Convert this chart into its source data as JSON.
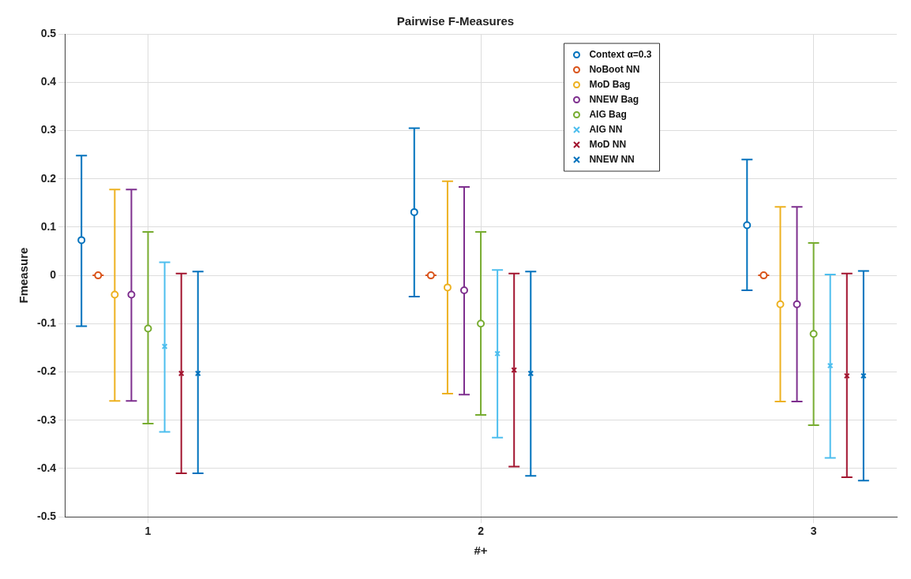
{
  "chart_data": {
    "type": "scatter",
    "title": "Pairwise F-Measures",
    "xlabel": "#+",
    "ylabel": "Fmeasure",
    "xlim": [
      0.75,
      3.25
    ],
    "xticks": [
      1,
      2,
      3
    ],
    "ylim": [
      -0.5,
      0.5
    ],
    "yticks": [
      -0.5,
      -0.4,
      -0.3,
      -0.2,
      -0.1,
      0,
      0.1,
      0.2,
      0.3,
      0.4,
      0.5
    ],
    "grid": true,
    "legend": "top right",
    "series": [
      {
        "name": "Context α=0.3",
        "color": "#0072bd",
        "marker": "circle",
        "x": [
          0.8,
          1.8,
          2.8
        ],
        "values": [
          0.073,
          0.131,
          0.104
        ],
        "errors": [
          [
            -0.105,
            0.248
          ],
          [
            -0.044,
            0.305
          ],
          [
            -0.031,
            0.24
          ]
        ]
      },
      {
        "name": "NoBoot NN",
        "color": "#d95319",
        "marker": "circle",
        "x": [
          0.85,
          1.85,
          2.85
        ],
        "values": [
          0,
          0,
          0
        ],
        "errors": [
          0,
          0,
          0
        ]
      },
      {
        "name": "MoD Bag",
        "color": "#edb120",
        "marker": "circle",
        "x": [
          0.9,
          1.9,
          2.9
        ],
        "values": [
          -0.04,
          -0.025,
          -0.06
        ],
        "errors": [
          [
            -0.26,
            0.178
          ],
          [
            -0.245,
            0.195
          ],
          [
            -0.261,
            0.142
          ]
        ]
      },
      {
        "name": "NNEW Bag",
        "color": "#7e2f8e",
        "marker": "circle",
        "x": [
          0.95,
          1.95,
          2.95
        ],
        "values": [
          -0.04,
          -0.031,
          -0.06
        ],
        "errors": [
          [
            -0.26,
            0.178
          ],
          [
            -0.247,
            0.183
          ],
          [
            -0.261,
            0.142
          ]
        ]
      },
      {
        "name": "AIG Bag",
        "color": "#77ac30",
        "marker": "circle",
        "x": [
          1,
          2,
          3
        ],
        "values": [
          -0.11,
          -0.1,
          -0.121
        ],
        "errors": [
          [
            -0.307,
            0.09
          ],
          [
            -0.289,
            0.09
          ],
          [
            -0.31,
            0.067
          ]
        ]
      },
      {
        "name": "AIG NN",
        "color": "#4dbeee",
        "marker": "cross",
        "x": [
          1.05,
          2.05,
          3.05
        ],
        "values": [
          -0.147,
          -0.162,
          -0.187
        ],
        "errors": [
          [
            -0.324,
            0.027
          ],
          [
            -0.336,
            0.011
          ],
          [
            -0.378,
            0.002
          ]
        ]
      },
      {
        "name": "MoD NN",
        "color": "#a2142f",
        "marker": "cross",
        "x": [
          1.1,
          2.1,
          3.1
        ],
        "values": [
          -0.203,
          -0.196,
          -0.208
        ],
        "errors": [
          [
            -0.41,
            0.004
          ],
          [
            -0.396,
            0.004
          ],
          [
            -0.418,
            0.004
          ]
        ]
      },
      {
        "name": "NNEW NN",
        "color": "#0072bd",
        "marker": "cross",
        "x": [
          1.15,
          2.15,
          3.15
        ],
        "values": [
          -0.203,
          -0.203,
          -0.208
        ],
        "errors": [
          [
            -0.41,
            0.008
          ],
          [
            -0.415,
            0.008
          ],
          [
            -0.425,
            0.009
          ]
        ]
      }
    ]
  }
}
